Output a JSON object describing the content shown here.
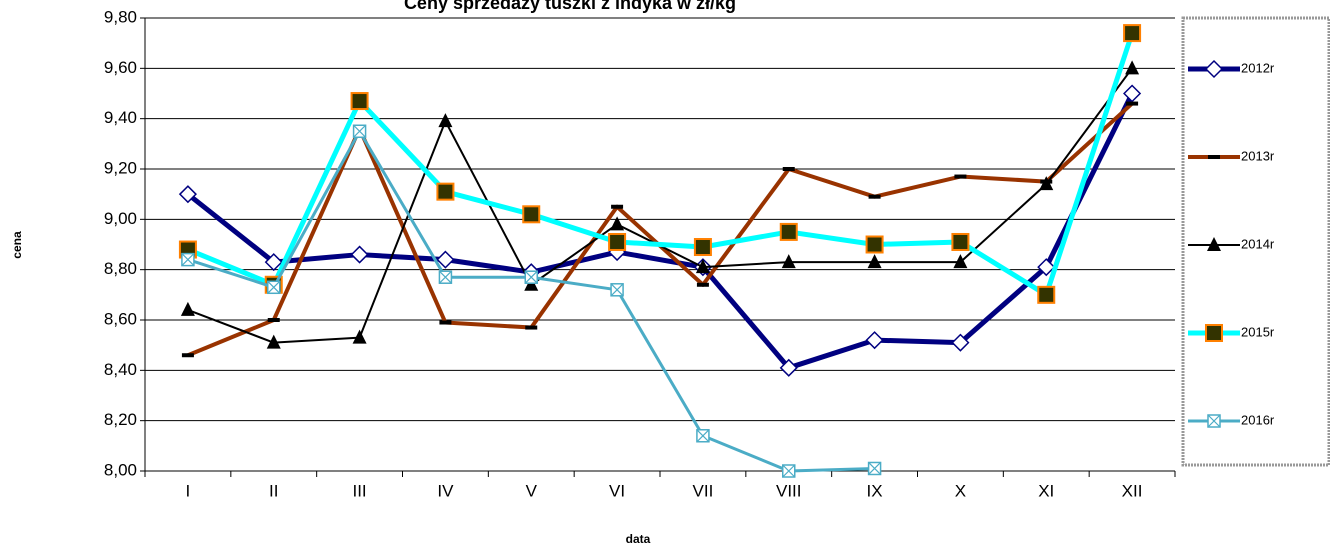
{
  "chart_data": {
    "type": "line",
    "title": "Ceny sprzedaży tuszki z indyka w zł/kg",
    "x_label": "data",
    "y_label": "cena",
    "categories": [
      "I",
      "II",
      "III",
      "IV",
      "V",
      "VI",
      "VII",
      "VIII",
      "IX",
      "X",
      "XI",
      "XII"
    ],
    "series": [
      {
        "name": "2012r",
        "color": "#000080",
        "marker": "diamond",
        "values": [
          9.1,
          8.83,
          8.86,
          8.84,
          8.79,
          8.87,
          8.81,
          8.41,
          8.52,
          8.51,
          8.81,
          9.5
        ]
      },
      {
        "name": "2013r",
        "color": "#993300",
        "marker": "dash",
        "values": [
          8.46,
          8.6,
          9.36,
          8.59,
          8.57,
          9.05,
          8.74,
          9.2,
          9.09,
          9.17,
          9.15,
          9.46
        ]
      },
      {
        "name": "2014r",
        "color": "#000000",
        "marker": "triangle",
        "values": [
          8.64,
          8.51,
          8.53,
          9.39,
          8.74,
          8.98,
          8.81,
          8.83,
          8.83,
          8.83,
          9.14,
          9.6
        ]
      },
      {
        "name": "2015r",
        "color": "#00ffff",
        "marker": "square",
        "values": [
          8.88,
          8.74,
          9.47,
          9.11,
          9.02,
          8.91,
          8.89,
          8.95,
          8.9,
          8.91,
          8.7,
          9.74
        ]
      },
      {
        "name": "2016r",
        "color": "#4bacc6",
        "marker": "xsquare",
        "values": [
          8.84,
          8.73,
          9.35,
          8.77,
          8.77,
          8.72,
          8.14,
          8.0,
          8.01,
          null,
          null,
          null
        ]
      }
    ],
    "ylim": [
      8.0,
      9.8
    ],
    "yticks": [
      {
        "value": 8.0,
        "label": "8,00"
      },
      {
        "value": 8.2,
        "label": "8,20"
      },
      {
        "value": 8.4,
        "label": "8,40"
      },
      {
        "value": 8.6,
        "label": "8,60"
      },
      {
        "value": 8.8,
        "label": "8,80"
      },
      {
        "value": 9.0,
        "label": "9,00"
      },
      {
        "value": 9.2,
        "label": "9,20"
      },
      {
        "value": 9.4,
        "label": "9,40"
      },
      {
        "value": 9.6,
        "label": "9,60"
      },
      {
        "value": 9.8,
        "label": "9,80"
      }
    ],
    "grid": true,
    "legend": "right"
  }
}
